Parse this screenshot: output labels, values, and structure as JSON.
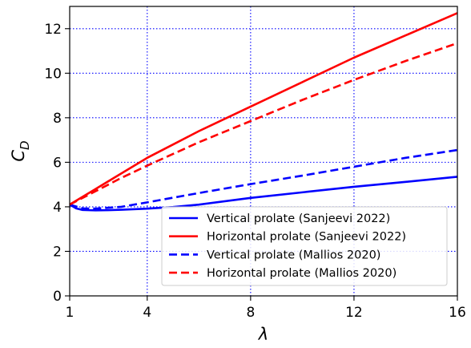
{
  "chart_data": {
    "type": "line",
    "xlabel": "λ",
    "ylabel_main": "C",
    "ylabel_sub": "D",
    "xlim": [
      1,
      16
    ],
    "ylim": [
      0,
      13
    ],
    "xticks": [
      1,
      4,
      8,
      12,
      16
    ],
    "yticks": [
      0,
      2,
      4,
      6,
      8,
      10,
      12
    ],
    "grid": true,
    "grid_style": "dotted",
    "grid_color": "#0000ff",
    "legend_position": "lower-right",
    "series": [
      {
        "name": "Vertical prolate (Sanjeevi 2022)",
        "color": "#0000ff",
        "dash": "solid",
        "x": [
          1,
          1.25,
          1.5,
          2,
          2.5,
          3,
          4,
          5,
          6,
          8,
          10,
          12,
          14,
          16
        ],
        "y": [
          4.1,
          3.93,
          3.86,
          3.84,
          3.85,
          3.87,
          3.92,
          3.99,
          4.1,
          4.4,
          4.65,
          4.9,
          5.12,
          5.35
        ]
      },
      {
        "name": "Horizontal prolate (Sanjeevi 2022)",
        "color": "#ff0000",
        "dash": "solid",
        "x": [
          1,
          2,
          3,
          4,
          5,
          6,
          8,
          10,
          12,
          14,
          16
        ],
        "y": [
          4.1,
          4.8,
          5.5,
          6.2,
          6.8,
          7.4,
          8.5,
          9.6,
          10.7,
          11.7,
          12.7
        ]
      },
      {
        "name": "Vertical prolate (Mallios 2020)",
        "color": "#0000ff",
        "dash": "dashed",
        "x": [
          1,
          1.5,
          2,
          3,
          4,
          6,
          8,
          10,
          12,
          14,
          16
        ],
        "y": [
          4.1,
          3.93,
          3.92,
          4.0,
          4.2,
          4.62,
          5.02,
          5.4,
          5.8,
          6.2,
          6.55
        ]
      },
      {
        "name": "Horizontal prolate (Mallios 2020)",
        "color": "#ff0000",
        "dash": "dashed",
        "x": [
          1,
          2,
          3,
          4,
          6,
          8,
          10,
          12,
          14,
          16
        ],
        "y": [
          4.1,
          4.7,
          5.3,
          5.85,
          6.9,
          7.85,
          8.8,
          9.7,
          10.55,
          11.35
        ]
      }
    ]
  }
}
